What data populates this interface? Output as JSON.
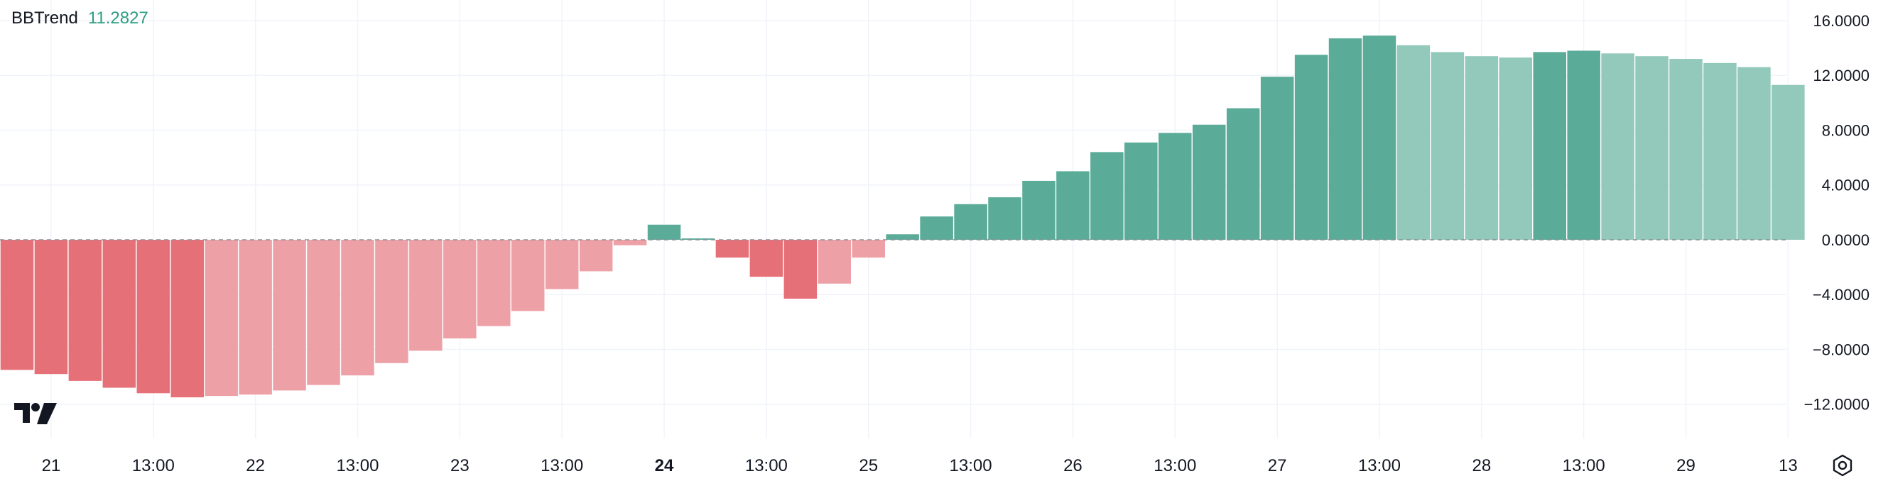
{
  "legend": {
    "name": "BBTrend",
    "value": "11.2827"
  },
  "logo": {
    "icon": "tradingview-logo-icon"
  },
  "settings": {
    "icon": "settings-icon"
  },
  "colors": {
    "positive_strong": "#5aab98",
    "positive_weak": "#92c9bb",
    "negative_strong": "#e57078",
    "negative_weak": "#eea0a7",
    "grid": "#f0f3fa",
    "zero_line": "#8a8f99",
    "legend_value": "#2e9e82"
  },
  "chart_data": {
    "type": "bar",
    "title": "BBTrend",
    "ylim": [
      -14.5,
      17.5
    ],
    "y_ticks": [
      "16.0000",
      "12.0000",
      "8.0000",
      "4.0000",
      "0.0000",
      "−4.0000",
      "−8.0000",
      "−12.0000"
    ],
    "y_tick_values": [
      16,
      12,
      8,
      4,
      0,
      -4,
      -8,
      -12
    ],
    "x_ticks": [
      {
        "label": "21",
        "bar": 1.5,
        "bold": false
      },
      {
        "label": "13:00",
        "bar": 4.5,
        "bold": false
      },
      {
        "label": "22",
        "bar": 7.5,
        "bold": false
      },
      {
        "label": "13:00",
        "bar": 10.5,
        "bold": false
      },
      {
        "label": "23",
        "bar": 13.5,
        "bold": false
      },
      {
        "label": "13:00",
        "bar": 16.5,
        "bold": false
      },
      {
        "label": "24",
        "bar": 19.5,
        "bold": true
      },
      {
        "label": "13:00",
        "bar": 22.5,
        "bold": false
      },
      {
        "label": "25",
        "bar": 25.5,
        "bold": false
      },
      {
        "label": "13:00",
        "bar": 28.5,
        "bold": false
      },
      {
        "label": "26",
        "bar": 31.5,
        "bold": false
      },
      {
        "label": "13:00",
        "bar": 34.5,
        "bold": false
      },
      {
        "label": "27",
        "bar": 37.5,
        "bold": false
      },
      {
        "label": "13:00",
        "bar": 40.5,
        "bold": false
      },
      {
        "label": "28",
        "bar": 43.5,
        "bold": false
      },
      {
        "label": "13:00",
        "bar": 46.5,
        "bold": false
      },
      {
        "label": "29",
        "bar": 49.5,
        "bold": false
      },
      {
        "label": "13",
        "bar": 52.5,
        "bold": false
      }
    ],
    "values": [
      -9.5,
      -9.8,
      -10.3,
      -10.8,
      -11.2,
      -11.5,
      -11.4,
      -11.3,
      -11.0,
      -10.6,
      -9.9,
      -9.0,
      -8.1,
      -7.2,
      -6.3,
      -5.2,
      -3.6,
      -2.3,
      -0.4,
      1.1,
      0.1,
      -1.3,
      -2.7,
      -4.3,
      -3.2,
      -1.3,
      0.4,
      1.7,
      2.6,
      3.1,
      4.3,
      5.0,
      6.4,
      7.1,
      7.8,
      8.4,
      9.6,
      11.9,
      13.5,
      14.7,
      14.9,
      14.2,
      13.7,
      13.4,
      13.3,
      13.7,
      13.8,
      13.6,
      13.4,
      13.2,
      12.9,
      12.6,
      11.3
    ],
    "strength": [
      "strong",
      "strong",
      "strong",
      "strong",
      "strong",
      "strong",
      "weak",
      "weak",
      "weak",
      "weak",
      "weak",
      "weak",
      "weak",
      "weak",
      "weak",
      "weak",
      "weak",
      "weak",
      "weak",
      "strong",
      "strong",
      "strong",
      "strong",
      "strong",
      "weak",
      "weak",
      "strong",
      "strong",
      "strong",
      "strong",
      "strong",
      "strong",
      "strong",
      "strong",
      "strong",
      "strong",
      "strong",
      "strong",
      "strong",
      "strong",
      "strong",
      "weak",
      "weak",
      "weak",
      "weak",
      "strong",
      "strong",
      "weak",
      "weak",
      "weak",
      "weak",
      "weak",
      "weak"
    ]
  }
}
